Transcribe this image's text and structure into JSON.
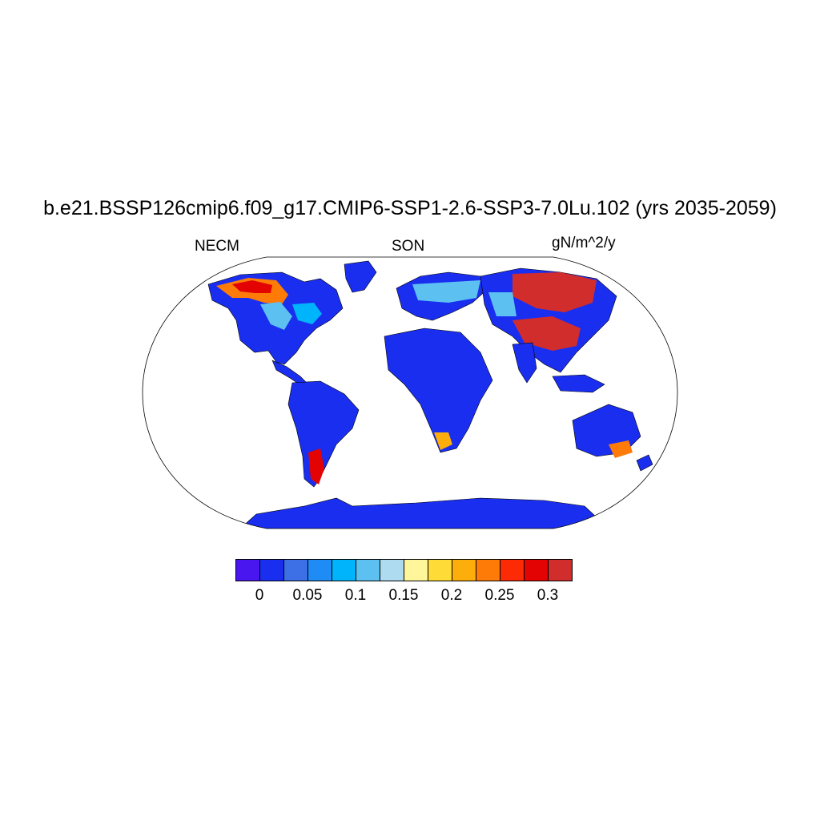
{
  "title": "b.e21.BSSP126cmip6.f09_g17.CMIP6-SSP1-2.6-SSP3-7.0Lu.102 (yrs 2035-2059)",
  "subtitle_left": "NECM",
  "subtitle_center": "SON",
  "subtitle_right": "gN/m^2/y",
  "colorbar": {
    "colors": [
      "#4a16f0",
      "#1a2ef0",
      "#3d6fe6",
      "#1f8cf5",
      "#00b4fb",
      "#5cc1f1",
      "#aedbf0",
      "#fff59a",
      "#fedb36",
      "#fdae0a",
      "#fd7b06",
      "#fc2a05",
      "#e30303",
      "#d22d2d"
    ],
    "labels": [
      "0",
      "0.05",
      "0.1",
      "0.15",
      "0.2",
      "0.25",
      "0.3"
    ]
  }
}
